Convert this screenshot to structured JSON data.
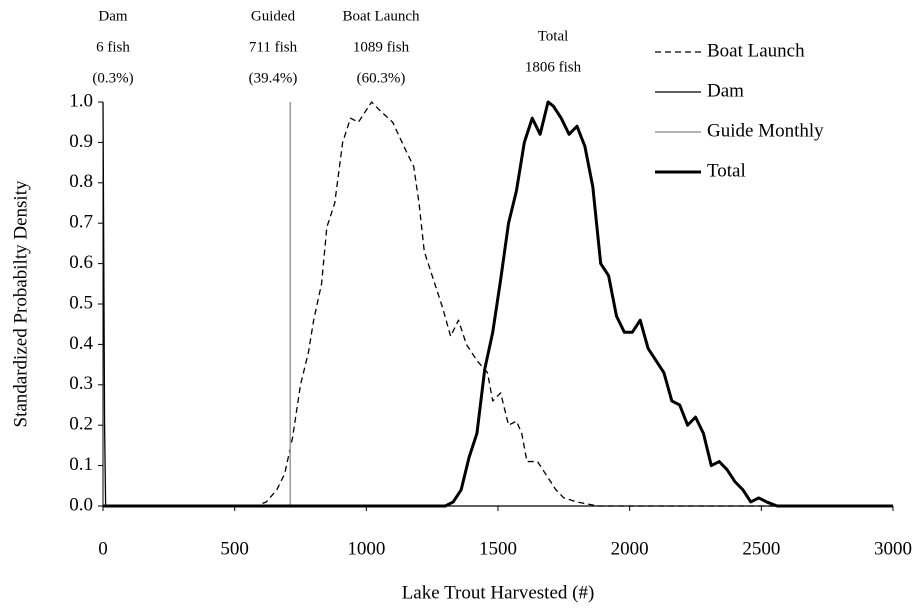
{
  "chart_data": {
    "type": "line",
    "xlabel": "Lake Trout Harvested (#)",
    "ylabel": "Standardized Probabilty Density",
    "xlim": [
      0,
      3000
    ],
    "ylim": [
      0,
      1
    ],
    "xticks": [
      0,
      500,
      1000,
      1500,
      2000,
      2500,
      3000
    ],
    "yticks": [
      {
        "value": 0,
        "label": "0.0"
      },
      0.1,
      0.2,
      0.3,
      0.4,
      0.5,
      0.6,
      0.7,
      0.8,
      0.9,
      {
        "value": 1,
        "label": "1.0"
      }
    ],
    "legend": "upper right",
    "annotations": [
      {
        "lines": [
          "Dam",
          "6 fish",
          "(0.3%)"
        ]
      },
      {
        "lines": [
          "Guided",
          "711 fish",
          "(39.4%)"
        ]
      },
      {
        "lines": [
          "Boat Launch",
          "1089 fish",
          "(60.3%)"
        ]
      },
      {
        "lines": [
          "Total",
          "1806 fish"
        ]
      }
    ],
    "series": [
      {
        "name": "Boat Launch",
        "color": "#000000",
        "dashed": true,
        "linewidth": 1.3,
        "x": [
          0,
          580,
          620,
          660,
          690,
          720,
          750,
          780,
          800,
          830,
          850,
          880,
          910,
          940,
          970,
          1000,
          1020,
          1050,
          1100,
          1150,
          1180,
          1200,
          1220,
          1250,
          1290,
          1320,
          1350,
          1380,
          1420,
          1460,
          1480,
          1510,
          1540,
          1570,
          1590,
          1610,
          1650,
          1680,
          1720,
          1750,
          1800,
          1880,
          3000
        ],
        "values": [
          0,
          0,
          0.01,
          0.04,
          0.08,
          0.17,
          0.3,
          0.38,
          0.46,
          0.55,
          0.69,
          0.75,
          0.9,
          0.96,
          0.95,
          0.98,
          1.0,
          0.98,
          0.95,
          0.88,
          0.84,
          0.75,
          0.63,
          0.57,
          0.49,
          0.42,
          0.46,
          0.4,
          0.36,
          0.33,
          0.26,
          0.28,
          0.2,
          0.21,
          0.18,
          0.11,
          0.11,
          0.08,
          0.04,
          0.02,
          0.01,
          0,
          0
        ]
      },
      {
        "name": "Dam",
        "color": "#000000",
        "dashed": false,
        "linewidth": 1.3,
        "x": [
          0,
          6,
          10,
          3000
        ],
        "values": [
          1.0,
          0.2,
          0,
          0
        ]
      },
      {
        "name": "Guide Monthly",
        "color": "#999999",
        "dashed": false,
        "linewidth": 1.5,
        "x": [
          711,
          711
        ],
        "values": [
          0,
          1.0
        ]
      },
      {
        "name": "Total",
        "color": "#000000",
        "dashed": false,
        "linewidth": 3,
        "x": [
          0,
          1300,
          1330,
          1360,
          1390,
          1420,
          1450,
          1480,
          1510,
          1540,
          1570,
          1600,
          1630,
          1660,
          1690,
          1710,
          1740,
          1770,
          1800,
          1830,
          1860,
          1890,
          1920,
          1950,
          1980,
          2010,
          2040,
          2070,
          2100,
          2130,
          2160,
          2190,
          2220,
          2250,
          2280,
          2310,
          2340,
          2370,
          2400,
          2430,
          2460,
          2490,
          2520,
          2560,
          3000
        ],
        "values": [
          0,
          0,
          0.01,
          0.04,
          0.12,
          0.18,
          0.34,
          0.43,
          0.56,
          0.7,
          0.78,
          0.9,
          0.96,
          0.92,
          1.0,
          0.99,
          0.96,
          0.92,
          0.94,
          0.89,
          0.79,
          0.6,
          0.57,
          0.47,
          0.43,
          0.43,
          0.46,
          0.39,
          0.36,
          0.33,
          0.26,
          0.25,
          0.2,
          0.22,
          0.18,
          0.1,
          0.11,
          0.09,
          0.06,
          0.04,
          0.01,
          0.02,
          0.01,
          0,
          0
        ]
      }
    ]
  }
}
